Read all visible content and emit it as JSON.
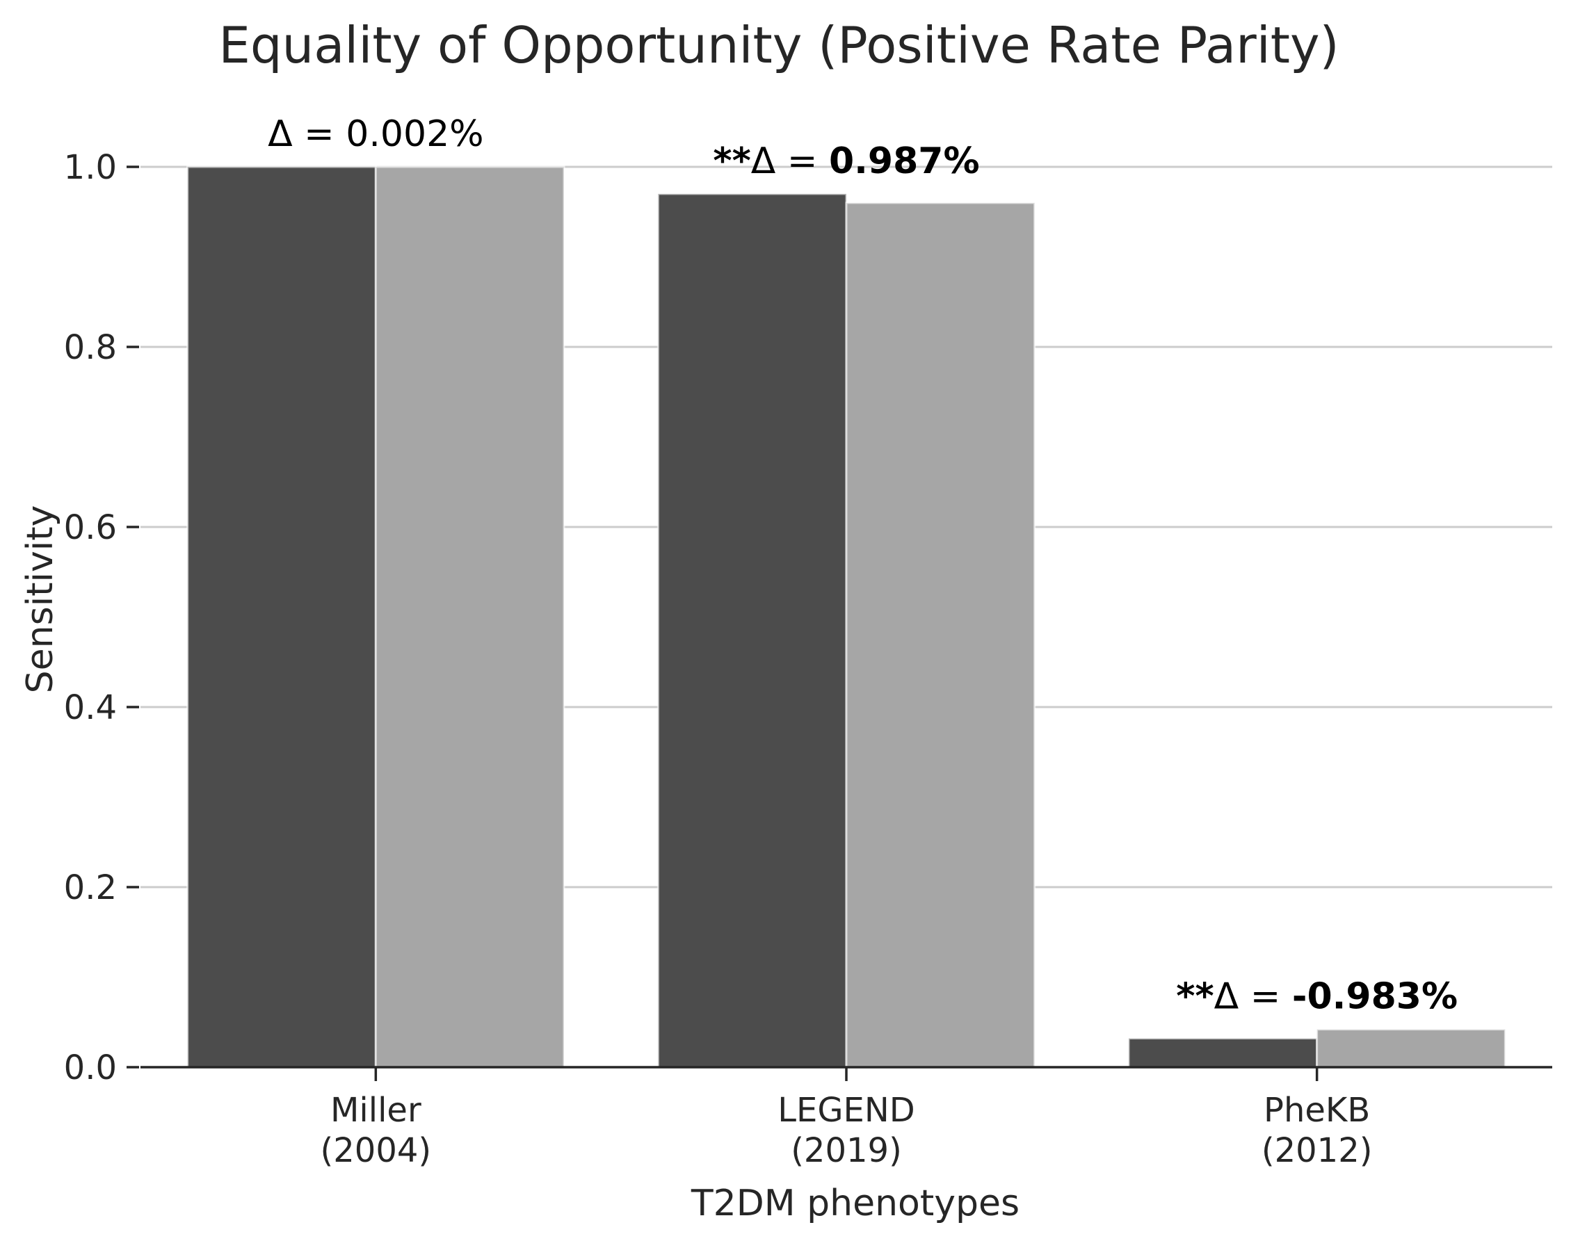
{
  "chart_data": {
    "type": "bar",
    "title": "Equality of Opportunity (Positive Rate Parity)",
    "xlabel": "T2DM phenotypes",
    "ylabel": "Sensitivity",
    "categories": [
      [
        "Miller",
        "(2004)"
      ],
      [
        "LEGEND",
        "(2019)"
      ],
      [
        "PheKB",
        "(2012)"
      ]
    ],
    "series": [
      {
        "values": [
          1.0,
          0.97,
          0.032
        ],
        "color": "#4c4c4c"
      },
      {
        "values": [
          1.0,
          0.96,
          0.042
        ],
        "color": "#a6a6a6"
      }
    ],
    "annotations": [
      {
        "prefix": "",
        "delta": "Δ = ",
        "value": "0.002%",
        "bold": false
      },
      {
        "prefix": "**",
        "delta": "Δ = ",
        "value": "0.987%",
        "bold": true
      },
      {
        "prefix": "**",
        "delta": "Δ = ",
        "value": "-0.983%",
        "bold": true
      }
    ],
    "ylim": [
      0,
      1.0
    ],
    "yticks": [
      0.0,
      0.2,
      0.4,
      0.6,
      0.8,
      1.0
    ],
    "ytick_labels": [
      "0.0",
      "0.2",
      "0.4",
      "0.6",
      "0.8",
      "1.0"
    ],
    "grid": "horizontal",
    "gridColor": "#cccccc",
    "axisColor": "#262626"
  }
}
